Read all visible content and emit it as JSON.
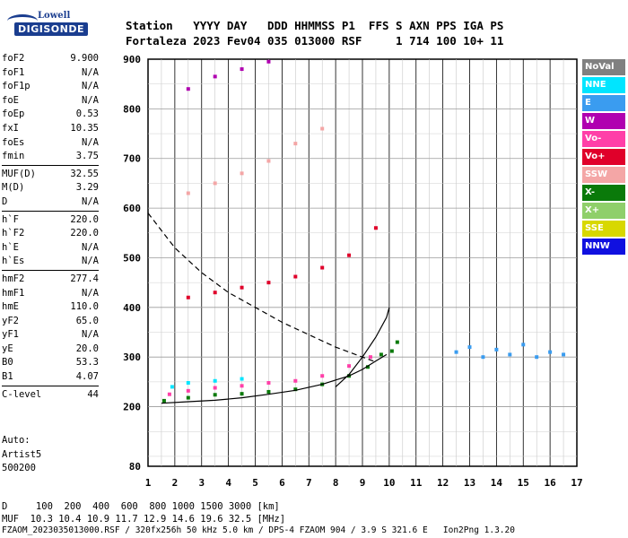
{
  "logo": {
    "top": "Lowell",
    "main": "DIGISONDE"
  },
  "header": {
    "line1": "Station   YYYY DAY   DDD HHMMSS P1  FFS S AXN PPS IGA PS",
    "line2": "Fortaleza 2023 Fev04 035 013000 RSF     1 714 100 10+ 11"
  },
  "params": {
    "group1": [
      {
        "label": "foF2",
        "value": "9.900"
      },
      {
        "label": "foF1",
        "value": "N/A"
      },
      {
        "label": "foF1p",
        "value": "N/A"
      },
      {
        "label": "foE",
        "value": "N/A"
      },
      {
        "label": "foEp",
        "value": "0.53"
      },
      {
        "label": "fxI",
        "value": "10.35"
      },
      {
        "label": "foEs",
        "value": "N/A"
      },
      {
        "label": "fmin",
        "value": "3.75"
      }
    ],
    "group2": [
      {
        "label": "MUF(D)",
        "value": "32.55"
      },
      {
        "label": "M(D)",
        "value": "3.29"
      },
      {
        "label": "D",
        "value": "N/A"
      }
    ],
    "group3": [
      {
        "label": "h`F",
        "value": "220.0"
      },
      {
        "label": "h`F2",
        "value": "220.0"
      },
      {
        "label": "h`E",
        "value": "N/A"
      },
      {
        "label": "h`Es",
        "value": "N/A"
      }
    ],
    "group4": [
      {
        "label": "hmF2",
        "value": "277.4"
      },
      {
        "label": "hmF1",
        "value": "N/A"
      },
      {
        "label": "hmE",
        "value": "110.0"
      },
      {
        "label": "yF2",
        "value": "65.0"
      },
      {
        "label": "yF1",
        "value": "N/A"
      },
      {
        "label": "yE",
        "value": "20.0"
      },
      {
        "label": "B0",
        "value": "53.3"
      },
      {
        "label": "B1",
        "value": "4.07"
      }
    ],
    "group5": [
      {
        "label": "C-level",
        "value": "44"
      }
    ]
  },
  "auto": {
    "line1": "Auto:",
    "line2": "Artist5",
    "line3": "500200"
  },
  "legend": [
    {
      "label": "NoVal",
      "bg": "#808080",
      "fg": "#ffffff"
    },
    {
      "label": "NNE",
      "bg": "#00e5ff",
      "fg": "#ffffff"
    },
    {
      "label": "E",
      "bg": "#3a9cf0",
      "fg": "#ffffff"
    },
    {
      "label": "W",
      "bg": "#b000b0",
      "fg": "#ffffff"
    },
    {
      "label": "Vo-",
      "bg": "#ff3fa8",
      "fg": "#ffffff"
    },
    {
      "label": "Vo+",
      "bg": "#e0002a",
      "fg": "#ffffff"
    },
    {
      "label": "SSW",
      "bg": "#f4a6a6",
      "fg": "#ffffff"
    },
    {
      "label": "X-",
      "bg": "#0a7a0a",
      "fg": "#ffffff"
    },
    {
      "label": "X+",
      "bg": "#8fcf6a",
      "fg": "#ffffff"
    },
    {
      "label": "SSE",
      "bg": "#d8d800",
      "fg": "#ffffff"
    },
    {
      "label": "NNW",
      "bg": "#1010e0",
      "fg": "#ffffff"
    }
  ],
  "footer": {
    "line1": "D     100  200  400  600  800 1000 1500 3000 [km]",
    "line2": "MUF  10.3 10.4 10.9 11.7 12.9 14.6 19.6 32.5 [MHz]",
    "line3": "FZAOM_2023035013000.RSF / 320fx256h 50 kHz 5.0 km / DPS-4 FZAOM 904 / 3.9 S 321.6 E   Ion2Png 1.3.20"
  },
  "chart_data": {
    "type": "scatter",
    "xlabel": "",
    "ylabel": "",
    "xlim": [
      1,
      17
    ],
    "ylim": [
      80,
      900
    ],
    "x_ticks": [
      1,
      2,
      3,
      4,
      5,
      6,
      7,
      8,
      9,
      10,
      11,
      12,
      13,
      14,
      15,
      16,
      17
    ],
    "y_ticks": [
      80,
      200,
      300,
      400,
      500,
      600,
      700,
      800,
      900
    ],
    "grid": true,
    "series": [
      {
        "name": "X-",
        "values": [
          [
            1.6,
            212
          ],
          [
            2.5,
            218
          ],
          [
            3.5,
            224
          ],
          [
            4.5,
            226
          ],
          [
            5.5,
            230
          ],
          [
            6.5,
            235
          ],
          [
            7.5,
            245
          ],
          [
            8.5,
            262
          ],
          [
            9.2,
            280
          ],
          [
            9.7,
            305
          ],
          [
            10.1,
            312
          ],
          [
            10.3,
            330
          ]
        ]
      },
      {
        "name": "Vo-",
        "values": [
          [
            1.8,
            225
          ],
          [
            2.5,
            232
          ],
          [
            3.5,
            238
          ],
          [
            4.5,
            242
          ],
          [
            5.5,
            248
          ],
          [
            6.5,
            252
          ],
          [
            7.5,
            262
          ],
          [
            8.5,
            282
          ],
          [
            9.3,
            300
          ]
        ]
      },
      {
        "name": "NNE",
        "values": [
          [
            1.9,
            240
          ],
          [
            2.5,
            248
          ],
          [
            3.5,
            252
          ],
          [
            4.5,
            256
          ]
        ]
      },
      {
        "name": "Vo+",
        "values": [
          [
            2.5,
            420
          ],
          [
            3.5,
            430
          ],
          [
            4.5,
            440
          ],
          [
            5.5,
            450
          ],
          [
            6.5,
            462
          ],
          [
            7.5,
            480
          ],
          [
            8.5,
            505
          ],
          [
            9.5,
            560
          ]
        ]
      },
      {
        "name": "SSW",
        "values": [
          [
            2.5,
            630
          ],
          [
            3.5,
            650
          ],
          [
            4.5,
            670
          ],
          [
            5.5,
            695
          ],
          [
            6.5,
            730
          ],
          [
            7.5,
            760
          ]
        ]
      },
      {
        "name": "W",
        "values": [
          [
            2.5,
            840
          ],
          [
            3.5,
            865
          ],
          [
            4.5,
            880
          ],
          [
            5.5,
            895
          ]
        ]
      },
      {
        "name": "E",
        "values": [
          [
            12.5,
            310
          ],
          [
            13.0,
            320
          ],
          [
            13.5,
            300
          ],
          [
            14.0,
            315
          ],
          [
            14.5,
            305
          ],
          [
            15.0,
            325
          ],
          [
            15.5,
            300
          ],
          [
            16.0,
            310
          ],
          [
            16.5,
            305
          ]
        ]
      }
    ],
    "lines": [
      {
        "style": "solid",
        "points": [
          [
            1.5,
            207
          ],
          [
            2.5,
            210
          ],
          [
            3.5,
            213
          ],
          [
            4.5,
            218
          ],
          [
            5.5,
            225
          ],
          [
            6.5,
            233
          ],
          [
            7.5,
            245
          ],
          [
            8.5,
            262
          ],
          [
            9.0,
            275
          ],
          [
            9.5,
            292
          ],
          [
            9.9,
            305
          ]
        ]
      },
      {
        "style": "solid",
        "points": [
          [
            8.0,
            240
          ],
          [
            8.5,
            265
          ],
          [
            9.0,
            300
          ],
          [
            9.5,
            340
          ],
          [
            9.9,
            380
          ],
          [
            10.0,
            400
          ]
        ]
      },
      {
        "style": "dashed",
        "points": [
          [
            1.0,
            590
          ],
          [
            1.5,
            555
          ],
          [
            2.0,
            520
          ],
          [
            3.0,
            470
          ],
          [
            4.0,
            430
          ],
          [
            5.0,
            400
          ],
          [
            6.0,
            370
          ],
          [
            7.0,
            345
          ],
          [
            8.0,
            320
          ],
          [
            9.0,
            300
          ],
          [
            9.5,
            290
          ]
        ]
      }
    ]
  }
}
